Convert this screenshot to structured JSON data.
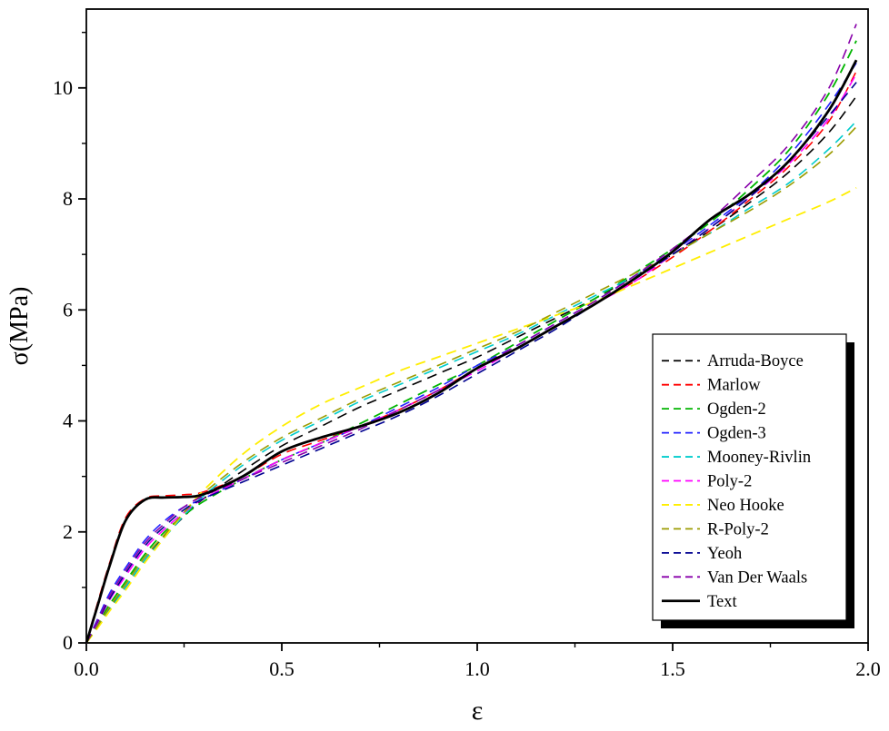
{
  "chart_data": {
    "type": "line",
    "title": "",
    "xlabel": "ε",
    "ylabel": "σ(MPa)",
    "xlim": [
      0,
      2.0
    ],
    "ylim": [
      0,
      11.42
    ],
    "grid": false,
    "legend_position": "right-middle",
    "legend_shadow": true,
    "x_ticks": {
      "values": [
        0,
        0.5,
        1.0,
        1.5,
        2.0
      ],
      "labels": [
        "0.0",
        "0.5",
        "1.0",
        "1.5",
        "2.0"
      ],
      "minor": [
        0.25,
        0.75,
        1.25,
        1.75
      ]
    },
    "y_ticks": {
      "values": [
        0,
        2,
        4,
        6,
        8,
        10
      ],
      "labels": [
        "0",
        "2",
        "4",
        "6",
        "8",
        "10"
      ],
      "minor": [
        1,
        3,
        5,
        7,
        9,
        11
      ]
    },
    "x": [
      0,
      0.03,
      0.06,
      0.1,
      0.15,
      0.2,
      0.25,
      0.3,
      0.4,
      0.5,
      0.6,
      0.7,
      0.8,
      0.9,
      1.0,
      1.1,
      1.2,
      1.3,
      1.4,
      1.5,
      1.6,
      1.7,
      1.8,
      1.9,
      1.97
    ],
    "series": [
      {
        "name": "Arruda-Boyce",
        "color": "#000000",
        "dashed": true,
        "width": 1.6,
        "values": [
          0,
          0.3,
          0.62,
          1.0,
          1.5,
          1.92,
          2.28,
          2.6,
          3.1,
          3.55,
          3.9,
          4.25,
          4.55,
          4.85,
          5.15,
          5.5,
          5.85,
          6.2,
          6.6,
          7.0,
          7.45,
          7.95,
          8.5,
          9.2,
          9.85
        ]
      },
      {
        "name": "Marlow",
        "color": "#ff0000",
        "dashed": true,
        "width": 1.6,
        "values": [
          0,
          0.75,
          1.45,
          2.25,
          2.6,
          2.65,
          2.67,
          2.72,
          3.0,
          3.4,
          3.65,
          3.9,
          4.2,
          4.55,
          4.95,
          5.3,
          5.7,
          6.1,
          6.5,
          6.95,
          7.45,
          8.0,
          8.6,
          9.4,
          10.3
        ]
      },
      {
        "name": "Ogden-2",
        "color": "#00b400",
        "dashed": true,
        "width": 1.8,
        "values": [
          0,
          0.35,
          0.7,
          1.1,
          1.6,
          2.0,
          2.3,
          2.55,
          2.95,
          3.3,
          3.6,
          3.95,
          4.3,
          4.65,
          5.0,
          5.4,
          5.8,
          6.2,
          6.65,
          7.1,
          7.6,
          8.2,
          8.9,
          9.9,
          10.85
        ]
      },
      {
        "name": "Ogden-3",
        "color": "#2222ff",
        "dashed": true,
        "width": 1.6,
        "values": [
          0,
          0.45,
          0.9,
          1.35,
          1.85,
          2.2,
          2.45,
          2.6,
          2.95,
          3.3,
          3.6,
          3.9,
          4.25,
          4.6,
          5.0,
          5.35,
          5.75,
          6.15,
          6.6,
          7.05,
          7.55,
          8.1,
          8.8,
          9.7,
          10.45
        ]
      },
      {
        "name": "Mooney-Rivlin",
        "color": "#00cccc",
        "dashed": true,
        "width": 1.6,
        "values": [
          0,
          0.3,
          0.6,
          1.0,
          1.5,
          1.9,
          2.3,
          2.65,
          3.2,
          3.65,
          4.0,
          4.35,
          4.65,
          4.95,
          5.25,
          5.55,
          5.9,
          6.25,
          6.6,
          7.0,
          7.4,
          7.85,
          8.3,
          8.9,
          9.4
        ]
      },
      {
        "name": "Poly-2",
        "color": "#ff00ff",
        "dashed": true,
        "width": 1.6,
        "values": [
          0,
          0.38,
          0.78,
          1.2,
          1.7,
          2.05,
          2.35,
          2.6,
          2.95,
          3.3,
          3.6,
          3.9,
          4.2,
          4.55,
          4.9,
          5.3,
          5.7,
          6.1,
          6.5,
          7.0,
          7.5,
          8.05,
          8.65,
          9.45,
          10.25
        ]
      },
      {
        "name": "Neo Hooke",
        "color": "#ffee00",
        "dashed": true,
        "width": 1.8,
        "values": [
          0,
          0.28,
          0.58,
          0.95,
          1.45,
          1.9,
          2.35,
          2.75,
          3.4,
          3.9,
          4.3,
          4.6,
          4.9,
          5.15,
          5.4,
          5.65,
          5.9,
          6.15,
          6.45,
          6.75,
          7.05,
          7.35,
          7.65,
          7.95,
          8.2
        ]
      },
      {
        "name": "R-Poly-2",
        "color": "#9b9b00",
        "dashed": true,
        "width": 1.6,
        "values": [
          0,
          0.32,
          0.65,
          1.05,
          1.55,
          1.95,
          2.35,
          2.7,
          3.25,
          3.7,
          4.05,
          4.4,
          4.7,
          5.0,
          5.3,
          5.6,
          5.95,
          6.3,
          6.65,
          7.0,
          7.4,
          7.8,
          8.25,
          8.8,
          9.3
        ]
      },
      {
        "name": "Yeoh",
        "color": "#000090",
        "dashed": true,
        "width": 1.6,
        "values": [
          0,
          0.4,
          0.8,
          1.25,
          1.75,
          2.1,
          2.4,
          2.6,
          2.9,
          3.2,
          3.5,
          3.8,
          4.1,
          4.45,
          4.85,
          5.25,
          5.65,
          6.1,
          6.55,
          7.0,
          7.5,
          8.05,
          8.7,
          9.5,
          10.1
        ]
      },
      {
        "name": "Van Der Waals",
        "color": "#8800aa",
        "dashed": true,
        "width": 1.6,
        "values": [
          0,
          0.42,
          0.85,
          1.3,
          1.8,
          2.15,
          2.45,
          2.65,
          2.95,
          3.25,
          3.55,
          3.85,
          4.2,
          4.55,
          4.95,
          5.35,
          5.75,
          6.15,
          6.6,
          7.1,
          7.65,
          8.3,
          9.0,
          10.0,
          11.15
        ]
      },
      {
        "name": "Text",
        "color": "#000000",
        "dashed": false,
        "width": 2.8,
        "values": [
          0,
          0.7,
          1.4,
          2.2,
          2.58,
          2.62,
          2.63,
          2.68,
          3.0,
          3.45,
          3.7,
          3.9,
          4.15,
          4.5,
          4.95,
          5.3,
          5.7,
          6.1,
          6.55,
          7.05,
          7.65,
          8.1,
          8.7,
          9.6,
          10.5
        ]
      }
    ]
  }
}
